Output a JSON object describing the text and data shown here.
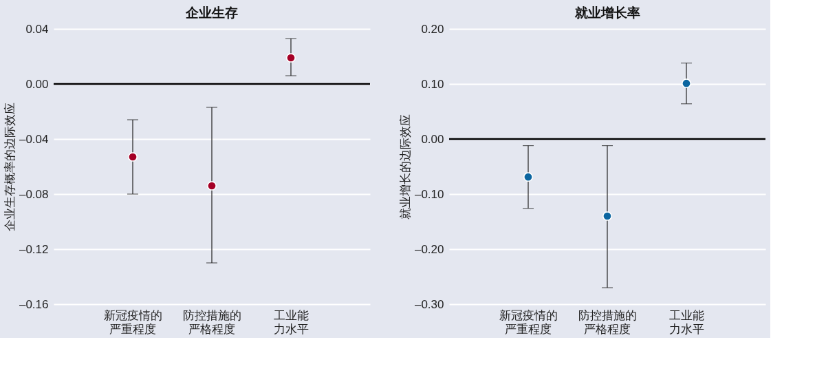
{
  "chart_data": [
    {
      "type": "scatter",
      "title": "企业生存",
      "ylabel": "企业生存概率的边际效应",
      "categories": [
        "新冠疫情的严重程度",
        "防控措施的严格程度",
        "工业能力水平"
      ],
      "values": [
        -0.053,
        -0.074,
        0.019
      ],
      "errors": [
        [
          -0.08,
          -0.026
        ],
        [
          -0.13,
          -0.017
        ],
        [
          0.006,
          0.033
        ]
      ],
      "color": "#a50026",
      "marker": "circle",
      "ylim": [
        -0.16,
        0.04
      ],
      "yticks": [
        {
          "value": -0.16,
          "label": "–0.16"
        },
        {
          "value": -0.12,
          "label": "–0.12"
        },
        {
          "value": -0.08,
          "label": "–0.08"
        },
        {
          "value": -0.04,
          "label": "–0.04"
        },
        {
          "value": 0,
          "label": "0.00"
        },
        0.04
      ],
      "ref_lines": [
        {
          "axis": "y",
          "value": 0,
          "color": "#000000"
        }
      ],
      "grid": "y",
      "legend": false
    },
    {
      "type": "scatter",
      "title": "就业增长率",
      "ylabel": "就业增长的边际效应",
      "categories": [
        "新冠疫情的严重程度",
        "防控措施的严格程度",
        "工业能力水平"
      ],
      "values": [
        -0.069,
        -0.14,
        0.101
      ],
      "errors": [
        [
          -0.126,
          -0.012
        ],
        [
          -0.27,
          -0.012
        ],
        [
          0.064,
          0.138
        ]
      ],
      "color": "#0b65a0",
      "marker": "circle",
      "ylim": [
        -0.3,
        0.2
      ],
      "yticks": [
        {
          "value": -0.3,
          "label": "–0.30"
        },
        {
          "value": -0.2,
          "label": "–0.20"
        },
        {
          "value": -0.1,
          "label": "–0.10"
        },
        {
          "value": 0,
          "label": "0.00"
        },
        {
          "value": 0.1,
          "label": "0.10"
        },
        {
          "value": 0.2,
          "label": "0.20"
        }
      ],
      "ref_lines": [
        {
          "axis": "y",
          "value": 0,
          "color": "#000000"
        }
      ],
      "grid": "y",
      "legend": false
    }
  ]
}
